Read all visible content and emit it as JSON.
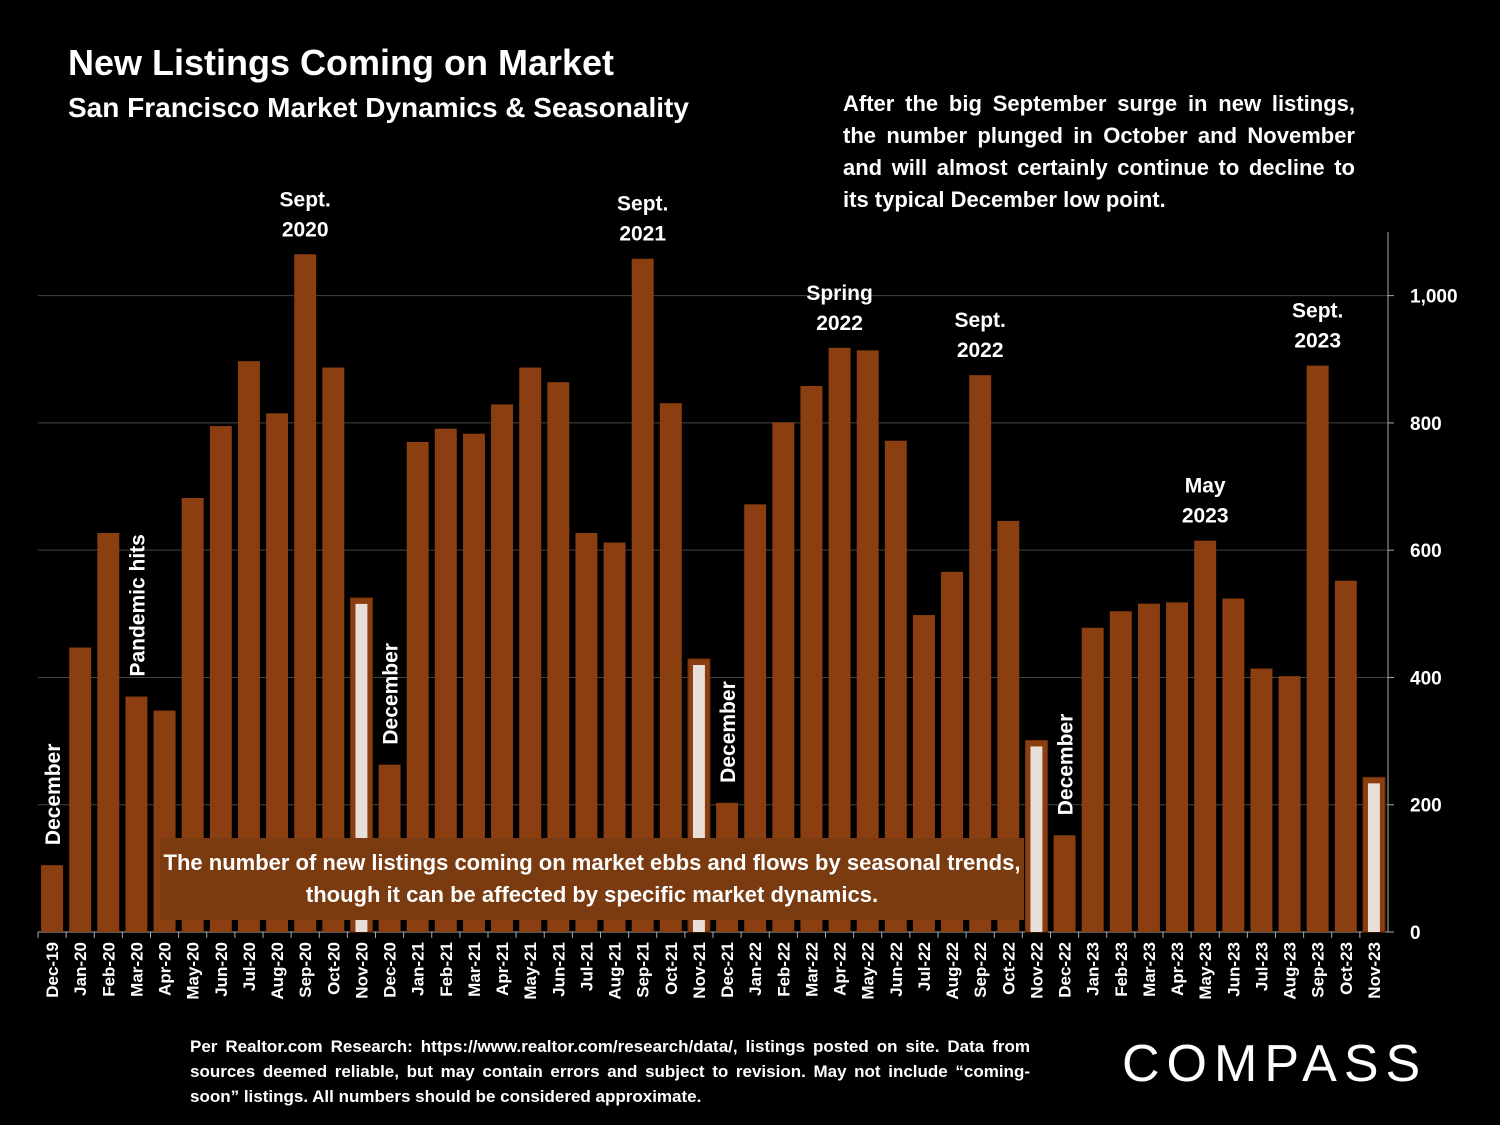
{
  "header": {
    "title": "New Listings Coming on Market",
    "subtitle": "San Francisco Market Dynamics & Seasonality"
  },
  "note": "After the big September surge in new listings, the number plunged in October and November and will almost certainly continue to decline to its typical December low point.",
  "callout": "The number of new listings coming on market ebbs and flows by seasonal trends, though it can be affected by specific market dynamics.",
  "source": "Per Realtor.com Research: https://www.realtor.com/research/data/, listings posted on site. Data from sources deemed reliable, but may contain errors and subject to revision. May not include “coming-soon” listings. All numbers should be considered approximate.",
  "logo": "COMPASS",
  "colors": {
    "bar": "#8b3f10",
    "highlight": "#e8e0d8",
    "grid": "#444444",
    "background": "#000000"
  },
  "chart_data": {
    "type": "bar",
    "categories": [
      "Dec-19",
      "Jan-20",
      "Feb-20",
      "Mar-20",
      "Apr-20",
      "May-20",
      "Jun-20",
      "Jul-20",
      "Aug-20",
      "Sep-20",
      "Oct-20",
      "Nov-20",
      "Dec-20",
      "Jan-21",
      "Feb-21",
      "Mar-21",
      "Apr-21",
      "May-21",
      "Jun-21",
      "Jul-21",
      "Aug-21",
      "Sep-21",
      "Oct-21",
      "Nov-21",
      "Dec-21",
      "Jan-22",
      "Feb-22",
      "Mar-22",
      "Apr-22",
      "May-22",
      "Jun-22",
      "Jul-22",
      "Aug-22",
      "Sep-22",
      "Oct-22",
      "Nov-22",
      "Dec-22",
      "Jan-23",
      "Feb-23",
      "Mar-23",
      "Apr-23",
      "May-23",
      "Jun-23",
      "Jul-23",
      "Aug-23",
      "Sep-23",
      "Oct-23",
      "Nov-23"
    ],
    "values": [
      105,
      447,
      627,
      370,
      348,
      682,
      795,
      897,
      815,
      1065,
      887,
      525,
      263,
      770,
      791,
      783,
      829,
      887,
      864,
      627,
      612,
      1058,
      831,
      429,
      203,
      672,
      801,
      858,
      918,
      914,
      772,
      498,
      566,
      875,
      646,
      301,
      152,
      478,
      504,
      516,
      518,
      615,
      524,
      414,
      402,
      890,
      552,
      243
    ],
    "highlighted": [
      "Nov-20",
      "Nov-21",
      "Nov-22",
      "Nov-23"
    ],
    "ylim": [
      0,
      1100
    ],
    "yticks": [
      0,
      200,
      400,
      600,
      800,
      1000
    ],
    "ytick_labels": [
      "0",
      "200",
      "400",
      "600",
      "800",
      "1,000"
    ],
    "grid": true,
    "y_axis_position": "right",
    "annotations": [
      {
        "category": "Dec-19",
        "lines": [
          "December"
        ],
        "orientation": "vertical"
      },
      {
        "category": "Mar-20",
        "lines": [
          "Pandemic hits"
        ],
        "orientation": "vertical"
      },
      {
        "category": "Sep-20",
        "lines": [
          "Sept.",
          "2020"
        ],
        "orientation": "horizontal"
      },
      {
        "category": "Dec-20",
        "lines": [
          "December"
        ],
        "orientation": "vertical"
      },
      {
        "category": "Sep-21",
        "lines": [
          "Sept.",
          "2021"
        ],
        "orientation": "horizontal"
      },
      {
        "category": "Dec-21",
        "lines": [
          "December"
        ],
        "orientation": "vertical"
      },
      {
        "category": "Apr-22",
        "lines": [
          "Spring",
          "2022"
        ],
        "orientation": "horizontal"
      },
      {
        "category": "Sep-22",
        "lines": [
          "Sept.",
          "2022"
        ],
        "orientation": "horizontal"
      },
      {
        "category": "Dec-22",
        "lines": [
          "December"
        ],
        "orientation": "vertical"
      },
      {
        "category": "May-23",
        "lines": [
          "May",
          "2023"
        ],
        "orientation": "horizontal"
      },
      {
        "category": "Sep-23",
        "lines": [
          "Sept.",
          "2023"
        ],
        "orientation": "horizontal"
      }
    ]
  }
}
